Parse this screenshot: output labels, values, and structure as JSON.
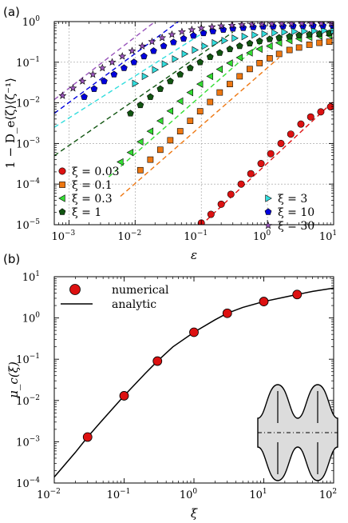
{
  "chart_data": [
    {
      "panel": "(a)",
      "type": "scatter",
      "xlabel": "ε",
      "ylabel": "1 − D_e⟨ζ⟩⟨ζ⁻¹⟩",
      "xscale": "log",
      "yscale": "log",
      "xlim": [
        0.0006,
        10
      ],
      "ylim": [
        1e-05,
        1
      ],
      "xticks": [
        {
          "v": 0.001,
          "exp": "−3"
        },
        {
          "v": 0.01,
          "exp": "−2"
        },
        {
          "v": 0.1,
          "exp": "−1"
        },
        {
          "v": 1,
          "exp": "0"
        },
        {
          "v": 10,
          "exp": "1"
        }
      ],
      "yticks": [
        {
          "v": 1e-05,
          "exp": "−5"
        },
        {
          "v": 0.0001,
          "exp": "−4"
        },
        {
          "v": 0.001,
          "exp": "−3"
        },
        {
          "v": 0.01,
          "exp": "−2"
        },
        {
          "v": 0.1,
          "exp": "−1"
        },
        {
          "v": 1,
          "exp": "0"
        }
      ],
      "grid": true,
      "legend_left": "bottom-left",
      "legend_right": "bottom-right",
      "series": [
        {
          "label": "ξ = 0.03",
          "color": "#dd1111",
          "marker": "circle",
          "legend_side": "left",
          "points": [
            [
              0.1,
              1.1e-05
            ],
            [
              0.14,
              1.8e-05
            ],
            [
              0.2,
              3.2e-05
            ],
            [
              0.28,
              5.6e-05
            ],
            [
              0.4,
              0.0001
            ],
            [
              0.56,
              0.00018
            ],
            [
              0.8,
              0.00032
            ],
            [
              1.12,
              0.00056
            ],
            [
              1.6,
              0.001
            ],
            [
              2.25,
              0.0017
            ],
            [
              3.2,
              0.003
            ],
            [
              4.5,
              0.0045
            ],
            [
              6.4,
              0.006
            ],
            [
              9,
              0.008
            ]
          ],
          "line": [
            [
              0.08,
              7e-06
            ],
            [
              10,
              0.011
            ]
          ]
        },
        {
          "label": "ξ = 0.1",
          "color": "#ee7711",
          "marker": "square",
          "legend_side": "left",
          "points": [
            [
              0.012,
              0.00022
            ],
            [
              0.017,
              0.0004
            ],
            [
              0.024,
              0.0007
            ],
            [
              0.034,
              0.0012
            ],
            [
              0.048,
              0.002
            ],
            [
              0.068,
              0.0036
            ],
            [
              0.096,
              0.0062
            ],
            [
              0.136,
              0.0105
            ],
            [
              0.19,
              0.018
            ],
            [
              0.27,
              0.029
            ],
            [
              0.38,
              0.045
            ],
            [
              0.54,
              0.068
            ],
            [
              0.76,
              0.095
            ],
            [
              1.08,
              0.125
            ],
            [
              1.5,
              0.16
            ],
            [
              2.15,
              0.2
            ],
            [
              3.0,
              0.23
            ],
            [
              4.3,
              0.27
            ],
            [
              6.1,
              0.3
            ],
            [
              8.6,
              0.32
            ]
          ],
          "line": [
            [
              0.006,
              5e-05
            ],
            [
              1.5,
              0.13
            ]
          ]
        },
        {
          "label": "ξ = 0.3",
          "color": "#33dd33",
          "marker": "triangle-left",
          "legend_side": "left",
          "points": [
            [
              0.006,
              0.00035
            ],
            [
              0.0085,
              0.0006
            ],
            [
              0.012,
              0.0011
            ],
            [
              0.017,
              0.002
            ],
            [
              0.024,
              0.0036
            ],
            [
              0.034,
              0.0063
            ],
            [
              0.048,
              0.011
            ],
            [
              0.068,
              0.018
            ],
            [
              0.096,
              0.029
            ],
            [
              0.136,
              0.045
            ],
            [
              0.19,
              0.067
            ],
            [
              0.27,
              0.095
            ],
            [
              0.38,
              0.13
            ],
            [
              0.54,
              0.17
            ],
            [
              0.76,
              0.21
            ],
            [
              1.08,
              0.25
            ],
            [
              1.5,
              0.3
            ],
            [
              2.15,
              0.34
            ],
            [
              3.0,
              0.38
            ],
            [
              4.3,
              0.41
            ],
            [
              6.1,
              0.44
            ],
            [
              8.6,
              0.46
            ]
          ],
          "line": [
            [
              0.004,
              0.00015
            ],
            [
              0.8,
              0.3
            ]
          ]
        },
        {
          "label": "ξ = 1",
          "color": "#115511",
          "marker": "pentagon",
          "legend_side": "left",
          "points": [
            [
              0.0085,
              0.0055
            ],
            [
              0.012,
              0.0088
            ],
            [
              0.017,
              0.014
            ],
            [
              0.024,
              0.022
            ],
            [
              0.034,
              0.034
            ],
            [
              0.048,
              0.05
            ],
            [
              0.068,
              0.072
            ],
            [
              0.096,
              0.1
            ],
            [
              0.136,
              0.135
            ],
            [
              0.19,
              0.17
            ],
            [
              0.27,
              0.21
            ],
            [
              0.38,
              0.25
            ],
            [
              0.54,
              0.29
            ],
            [
              0.76,
              0.33
            ],
            [
              1.08,
              0.37
            ],
            [
              1.5,
              0.4
            ],
            [
              2.15,
              0.43
            ],
            [
              3.0,
              0.46
            ],
            [
              4.3,
              0.48
            ],
            [
              6.1,
              0.5
            ],
            [
              8.6,
              0.52
            ]
          ],
          "line": [
            [
              0.0006,
              0.0005
            ],
            [
              0.3,
              0.55
            ]
          ]
        },
        {
          "label": "ξ = 3",
          "color": "#33dddd",
          "marker": "triangle-right",
          "legend_side": "right",
          "points": [
            [
              0.01,
              0.03
            ],
            [
              0.014,
              0.045
            ],
            [
              0.02,
              0.065
            ],
            [
              0.028,
              0.09
            ],
            [
              0.04,
              0.12
            ],
            [
              0.056,
              0.16
            ],
            [
              0.08,
              0.2
            ],
            [
              0.112,
              0.25
            ],
            [
              0.16,
              0.3
            ],
            [
              0.224,
              0.34
            ],
            [
              0.32,
              0.39
            ],
            [
              0.45,
              0.43
            ],
            [
              0.64,
              0.47
            ],
            [
              0.9,
              0.5
            ],
            [
              1.28,
              0.53
            ],
            [
              1.8,
              0.55
            ],
            [
              2.56,
              0.57
            ],
            [
              3.6,
              0.58
            ],
            [
              5.1,
              0.59
            ],
            [
              7.2,
              0.6
            ],
            [
              10,
              0.6
            ]
          ],
          "line": [
            [
              0.0006,
              0.0025
            ],
            [
              0.12,
              0.6
            ]
          ]
        },
        {
          "label": "ξ = 10",
          "color": "#0000dd",
          "marker": "pentagon",
          "legend_side": "right",
          "points": [
            [
              0.0017,
              0.014
            ],
            [
              0.0024,
              0.022
            ],
            [
              0.0034,
              0.034
            ],
            [
              0.0048,
              0.05
            ],
            [
              0.0068,
              0.072
            ],
            [
              0.0096,
              0.1
            ],
            [
              0.0136,
              0.14
            ],
            [
              0.019,
              0.19
            ],
            [
              0.027,
              0.25
            ],
            [
              0.038,
              0.31
            ],
            [
              0.054,
              0.38
            ],
            [
              0.076,
              0.45
            ],
            [
              0.108,
              0.52
            ],
            [
              0.15,
              0.58
            ],
            [
              0.215,
              0.63
            ],
            [
              0.3,
              0.67
            ],
            [
              0.43,
              0.7
            ],
            [
              0.61,
              0.73
            ],
            [
              0.86,
              0.75
            ],
            [
              1.22,
              0.76
            ],
            [
              1.72,
              0.77
            ],
            [
              2.44,
              0.78
            ],
            [
              3.44,
              0.78
            ],
            [
              4.9,
              0.79
            ],
            [
              6.9,
              0.79
            ],
            [
              9.7,
              0.79
            ]
          ],
          "line": [
            [
              0.0006,
              0.0055
            ],
            [
              0.045,
              1.0
            ]
          ]
        },
        {
          "label": "ξ = 30",
          "color": "#9955bb",
          "marker": "star",
          "legend_side": "right",
          "points": [
            [
              0.0008,
              0.015
            ],
            [
              0.00115,
              0.023
            ],
            [
              0.0016,
              0.034
            ],
            [
              0.0023,
              0.05
            ],
            [
              0.0032,
              0.072
            ],
            [
              0.0045,
              0.1
            ],
            [
              0.0064,
              0.14
            ],
            [
              0.009,
              0.19
            ],
            [
              0.0128,
              0.25
            ],
            [
              0.018,
              0.32
            ],
            [
              0.0256,
              0.4
            ],
            [
              0.036,
              0.48
            ],
            [
              0.051,
              0.56
            ],
            [
              0.072,
              0.63
            ],
            [
              0.1,
              0.69
            ],
            [
              0.145,
              0.74
            ],
            [
              0.2,
              0.78
            ],
            [
              0.29,
              0.81
            ],
            [
              0.41,
              0.84
            ],
            [
              0.58,
              0.86
            ],
            [
              0.82,
              0.87
            ],
            [
              1.16,
              0.88
            ],
            [
              1.64,
              0.89
            ],
            [
              2.3,
              0.89
            ],
            [
              3.3,
              0.9
            ],
            [
              4.6,
              0.9
            ],
            [
              6.5,
              0.9
            ],
            [
              9.2,
              0.9
            ]
          ],
          "line": [
            [
              0.0006,
              0.012
            ],
            [
              0.02,
              1.0
            ]
          ]
        }
      ]
    },
    {
      "panel": "(b)",
      "type": "line",
      "xlabel": "ξ",
      "ylabel": "μ_c(ξ)",
      "xscale": "log",
      "yscale": "log",
      "xlim": [
        0.01,
        100
      ],
      "ylim": [
        0.0001,
        10
      ],
      "xticks": [
        {
          "v": 0.01,
          "exp": "−2"
        },
        {
          "v": 0.1,
          "exp": "−1"
        },
        {
          "v": 1,
          "exp": "0"
        },
        {
          "v": 10,
          "exp": "1"
        },
        {
          "v": 100,
          "exp": "2"
        }
      ],
      "yticks": [
        {
          "v": 0.0001,
          "exp": "−4"
        },
        {
          "v": 0.001,
          "exp": "−3"
        },
        {
          "v": 0.01,
          "exp": "−2"
        },
        {
          "v": 0.1,
          "exp": "−1"
        },
        {
          "v": 1,
          "exp": "0"
        },
        {
          "v": 10,
          "exp": "1"
        }
      ],
      "grid": false,
      "legend": "top-left",
      "series": [
        {
          "name": "numerical",
          "color": "#dd1111",
          "marker": "circle",
          "points": [
            [
              0.03,
              0.0013
            ],
            [
              0.1,
              0.013
            ],
            [
              0.3,
              0.09
            ],
            [
              1,
              0.45
            ],
            [
              3,
              1.3
            ],
            [
              10,
              2.5
            ],
            [
              30,
              3.7
            ]
          ]
        },
        {
          "name": "analytic",
          "color": "#000000",
          "curve": [
            [
              0.01,
              0.00014
            ],
            [
              0.02,
              0.00055
            ],
            [
              0.03,
              0.0013
            ],
            [
              0.05,
              0.0035
            ],
            [
              0.1,
              0.013
            ],
            [
              0.2,
              0.045
            ],
            [
              0.3,
              0.09
            ],
            [
              0.5,
              0.2
            ],
            [
              1,
              0.45
            ],
            [
              2,
              0.9
            ],
            [
              3,
              1.3
            ],
            [
              5,
              1.8
            ],
            [
              10,
              2.5
            ],
            [
              20,
              3.2
            ],
            [
              30,
              3.7
            ],
            [
              50,
              4.4
            ],
            [
              100,
              5.3
            ]
          ]
        }
      ]
    }
  ]
}
